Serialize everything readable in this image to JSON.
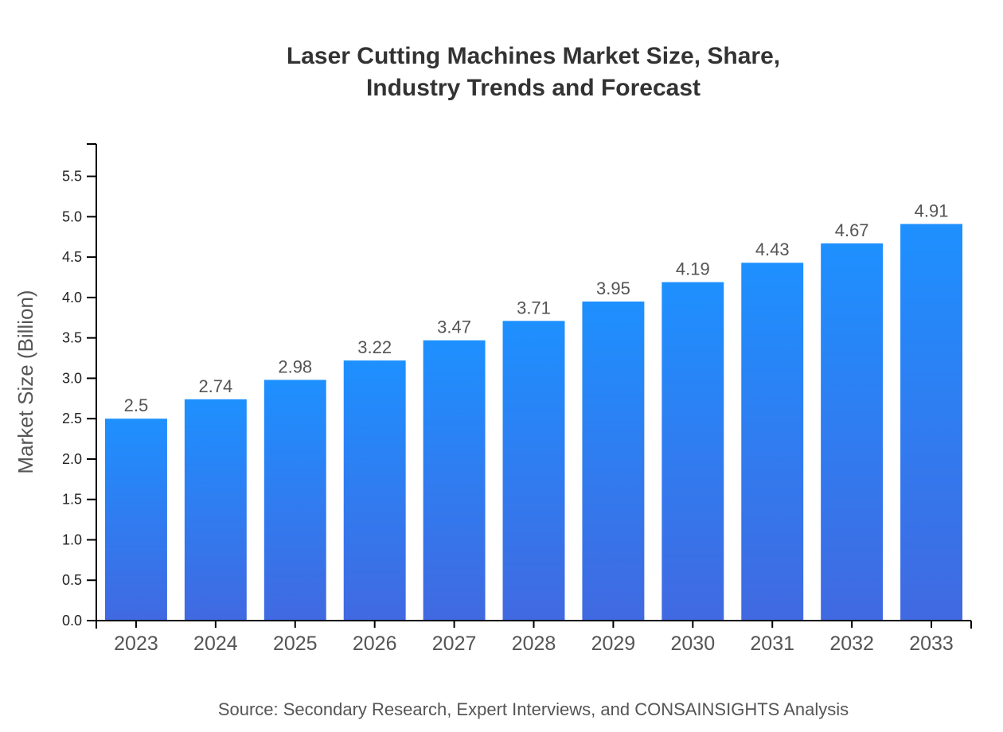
{
  "chart_data": {
    "type": "bar",
    "title": [
      "Laser Cutting Machines Market Size, Share,",
      "Industry Trends and Forecast"
    ],
    "xlabel": "",
    "ylabel": "Market Size (Billion)",
    "categories": [
      "2023",
      "2024",
      "2025",
      "2026",
      "2027",
      "2028",
      "2029",
      "2030",
      "2031",
      "2032",
      "2033"
    ],
    "values": [
      2.5,
      2.74,
      2.98,
      3.22,
      3.47,
      3.71,
      3.95,
      4.19,
      4.43,
      4.67,
      4.91
    ],
    "data_labels": [
      "2.5",
      "2.74",
      "2.98",
      "3.22",
      "3.47",
      "3.71",
      "3.95",
      "4.19",
      "4.43",
      "4.67",
      "4.91"
    ],
    "ylim": [
      0,
      5.9
    ],
    "yticks": [
      "0.0",
      "0.5",
      "1.0",
      "1.5",
      "2.0",
      "2.5",
      "3.0",
      "3.5",
      "4.0",
      "4.5",
      "5.0",
      "5.5"
    ],
    "grid": false,
    "legend": "none",
    "colors": {
      "bar_top": "#1e90ff",
      "bar_bottom": "#4169e1"
    },
    "source": "Source: Secondary Research, Expert Interviews, and CONSAINSIGHTS Analysis"
  }
}
